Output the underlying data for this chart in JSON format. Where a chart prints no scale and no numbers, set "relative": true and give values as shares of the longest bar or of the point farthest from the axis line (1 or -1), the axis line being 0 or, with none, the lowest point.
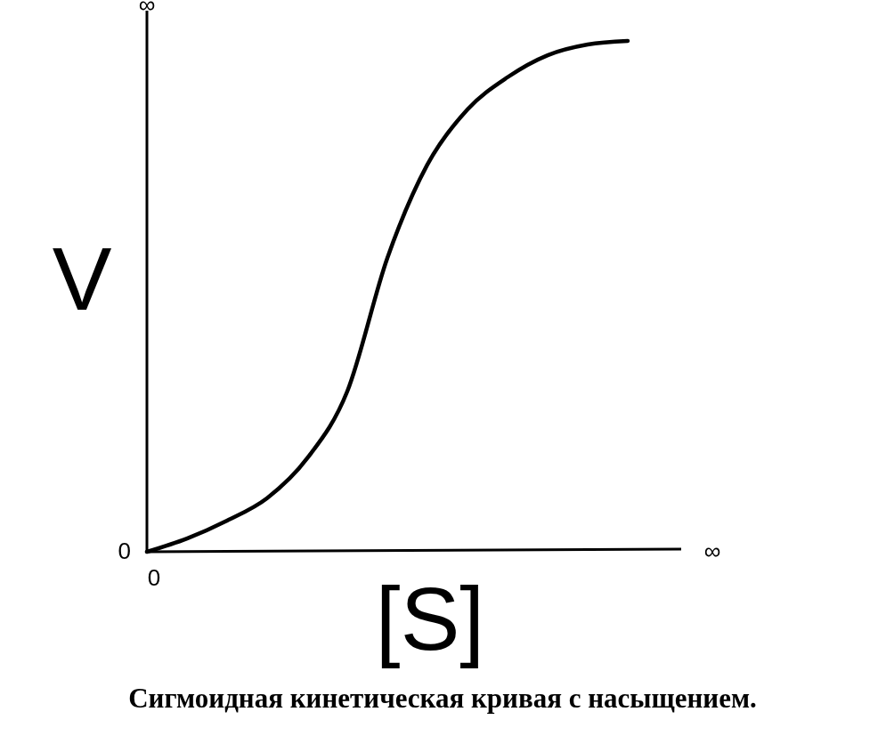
{
  "chart_data": {
    "type": "line",
    "title": "Сигмоидная кинетическая кривая с насыщением.",
    "xlabel": "[S]",
    "ylabel": "V",
    "relative": true,
    "categories": [
      null,
      null,
      null,
      null,
      null,
      null,
      null,
      null,
      null,
      null,
      null,
      null,
      null
    ],
    "series": [
      {
        "color": "#000000",
        "values": [
          0,
          0.026,
          0.061,
          0.105,
          0.183,
          0.314,
          0.575,
          0.758,
          0.866,
          0.929,
          0.972,
          0.993,
          1
        ]
      }
    ],
    "annotations": [
      "∞",
      "0",
      "0",
      "∞"
    ]
  }
}
